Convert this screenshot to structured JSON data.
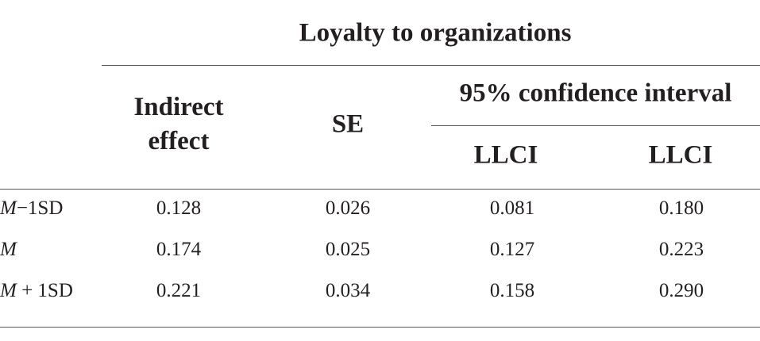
{
  "table": {
    "group_header": "Loyalty to organizations",
    "columns": {
      "indirect": [
        "Indirect",
        "effect"
      ],
      "se": "SE",
      "ci_group": "95% confidence interval",
      "ci_lower": "LLCI",
      "ci_upper": "LLCI"
    },
    "rows": [
      {
        "label": {
          "symbol": "M",
          "suffix": "−1SD"
        },
        "values": [
          "0.128",
          "0.026",
          "0.081",
          "0.180"
        ]
      },
      {
        "label": {
          "symbol": "M",
          "suffix": ""
        },
        "values": [
          "0.174",
          "0.025",
          "0.127",
          "0.223"
        ]
      },
      {
        "label": {
          "symbol": "M",
          "suffix": " + 1SD"
        },
        "values": [
          "0.221",
          "0.034",
          "0.158",
          "0.290"
        ]
      }
    ]
  }
}
